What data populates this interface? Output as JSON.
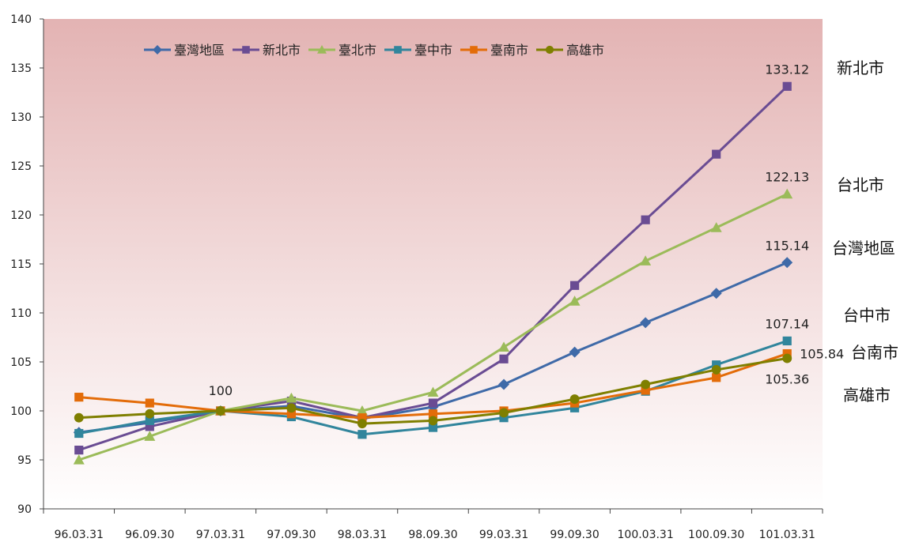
{
  "chart_data": {
    "type": "line",
    "categories": [
      "96.03.31",
      "96.09.30",
      "97.03.31",
      "97.09.30",
      "98.03.31",
      "98.09.30",
      "99.03.31",
      "99.09.30",
      "100.03.31",
      "100.09.30",
      "101.03.31"
    ],
    "ylim": [
      90,
      140
    ],
    "yticks": [
      90,
      95,
      100,
      105,
      110,
      115,
      120,
      125,
      130,
      135,
      140
    ],
    "legend_position": "top",
    "plot_background": "gradient from #e3b3b3 (top) to #ffffff (bottom)",
    "series": [
      {
        "name": "臺灣地區",
        "color": "#3f6aa8",
        "marker": "diamond",
        "values": [
          97.8,
          98.8,
          100,
          100.5,
          99.2,
          100.4,
          102.7,
          106.0,
          109.0,
          112.0,
          115.14
        ]
      },
      {
        "name": "新北市",
        "color": "#6a4c93",
        "marker": "square",
        "values": [
          96.0,
          98.4,
          100,
          101.0,
          99.3,
          100.8,
          105.3,
          112.8,
          119.5,
          126.2,
          133.12
        ]
      },
      {
        "name": "臺北市",
        "color": "#9bbb59",
        "marker": "triangle",
        "values": [
          95.0,
          97.4,
          100,
          101.3,
          100.0,
          101.9,
          106.5,
          111.2,
          115.3,
          118.7,
          122.13
        ]
      },
      {
        "name": "臺中市",
        "color": "#31859c",
        "marker": "square",
        "values": [
          97.7,
          99.0,
          100,
          99.4,
          97.6,
          98.3,
          99.3,
          100.3,
          102.0,
          104.7,
          107.14
        ]
      },
      {
        "name": "臺南市",
        "color": "#e36c09",
        "marker": "square",
        "values": [
          101.4,
          100.8,
          100,
          99.7,
          99.3,
          99.7,
          100.0,
          100.8,
          102.1,
          103.4,
          105.84
        ]
      },
      {
        "name": "高雄市",
        "color": "#7f7f00",
        "marker": "circle",
        "values": [
          99.3,
          99.7,
          100,
          100.3,
          98.7,
          99.0,
          99.8,
          101.2,
          102.7,
          104.2,
          105.36
        ]
      }
    ],
    "data_labels": [
      {
        "series": "新北市",
        "index": 10,
        "text": "133.12"
      },
      {
        "series": "臺北市",
        "index": 10,
        "text": "122.13"
      },
      {
        "series": "臺灣地區",
        "index": 10,
        "text": "115.14"
      },
      {
        "series": "臺中市",
        "index": 10,
        "text": "107.14"
      },
      {
        "series": "臺南市",
        "index": 10,
        "text": "105.84"
      },
      {
        "series": "高雄市",
        "index": 10,
        "text": "105.36"
      },
      {
        "series": "臺灣地區",
        "index": 2,
        "text": "100"
      }
    ],
    "side_labels": [
      "新北市",
      "台北市",
      "台灣地區",
      "台中市",
      "台南市",
      "高雄市"
    ]
  }
}
